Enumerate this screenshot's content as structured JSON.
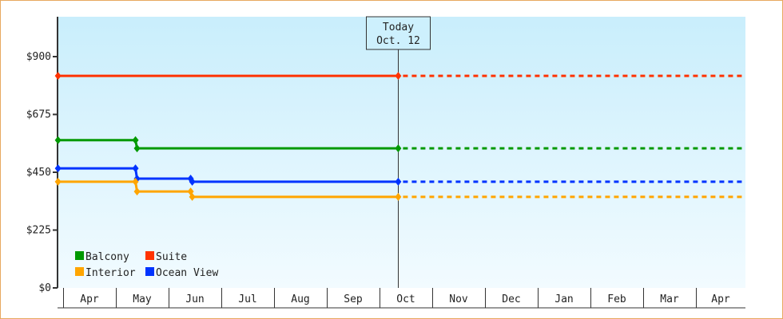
{
  "chart_data": {
    "type": "line",
    "subtype": "step",
    "ylim": [
      0,
      1050
    ],
    "yticks": [
      {
        "value": 0,
        "label": "$0"
      },
      {
        "value": 225,
        "label": "$225"
      },
      {
        "value": 450,
        "label": "$450"
      },
      {
        "value": 675,
        "label": "$675"
      },
      {
        "value": 900,
        "label": "$900"
      }
    ],
    "xtick_labels": [
      "Apr",
      "May",
      "Jun",
      "Jul",
      "Aug",
      "Sep",
      "Oct",
      "Nov",
      "Dec",
      "Jan",
      "Feb",
      "Mar",
      "Apr"
    ],
    "x_start": "Mar 29",
    "x_end": "Apr 30",
    "today": {
      "label_line1": "Today",
      "label_line2": "Oct. 12",
      "date": "Oct 12"
    },
    "series": [
      {
        "name": "Suite",
        "color": "#ff3300",
        "points": [
          [
            "Mar 29",
            825
          ],
          [
            "Oct 12",
            825
          ]
        ]
      },
      {
        "name": "Balcony",
        "color": "#009900",
        "points": [
          [
            "Mar 29",
            575
          ],
          [
            "May 13",
            543
          ],
          [
            "Oct 12",
            543
          ]
        ]
      },
      {
        "name": "Ocean View",
        "color": "#0033ff",
        "points": [
          [
            "Mar 29",
            465
          ],
          [
            "May 13",
            425
          ],
          [
            "Jun 14",
            413
          ],
          [
            "Oct 12",
            413
          ]
        ]
      },
      {
        "name": "Interior",
        "color": "#ffa500",
        "points": [
          [
            "Mar 29",
            413
          ],
          [
            "May 13",
            375
          ],
          [
            "Jun 14",
            354
          ],
          [
            "Oct 12",
            354
          ]
        ]
      }
    ],
    "projection": "dotted from today to end",
    "legend": {
      "placement": "bottom-left",
      "order": [
        "Balcony",
        "Suite",
        "Interior",
        "Ocean View"
      ]
    },
    "grid": false
  }
}
